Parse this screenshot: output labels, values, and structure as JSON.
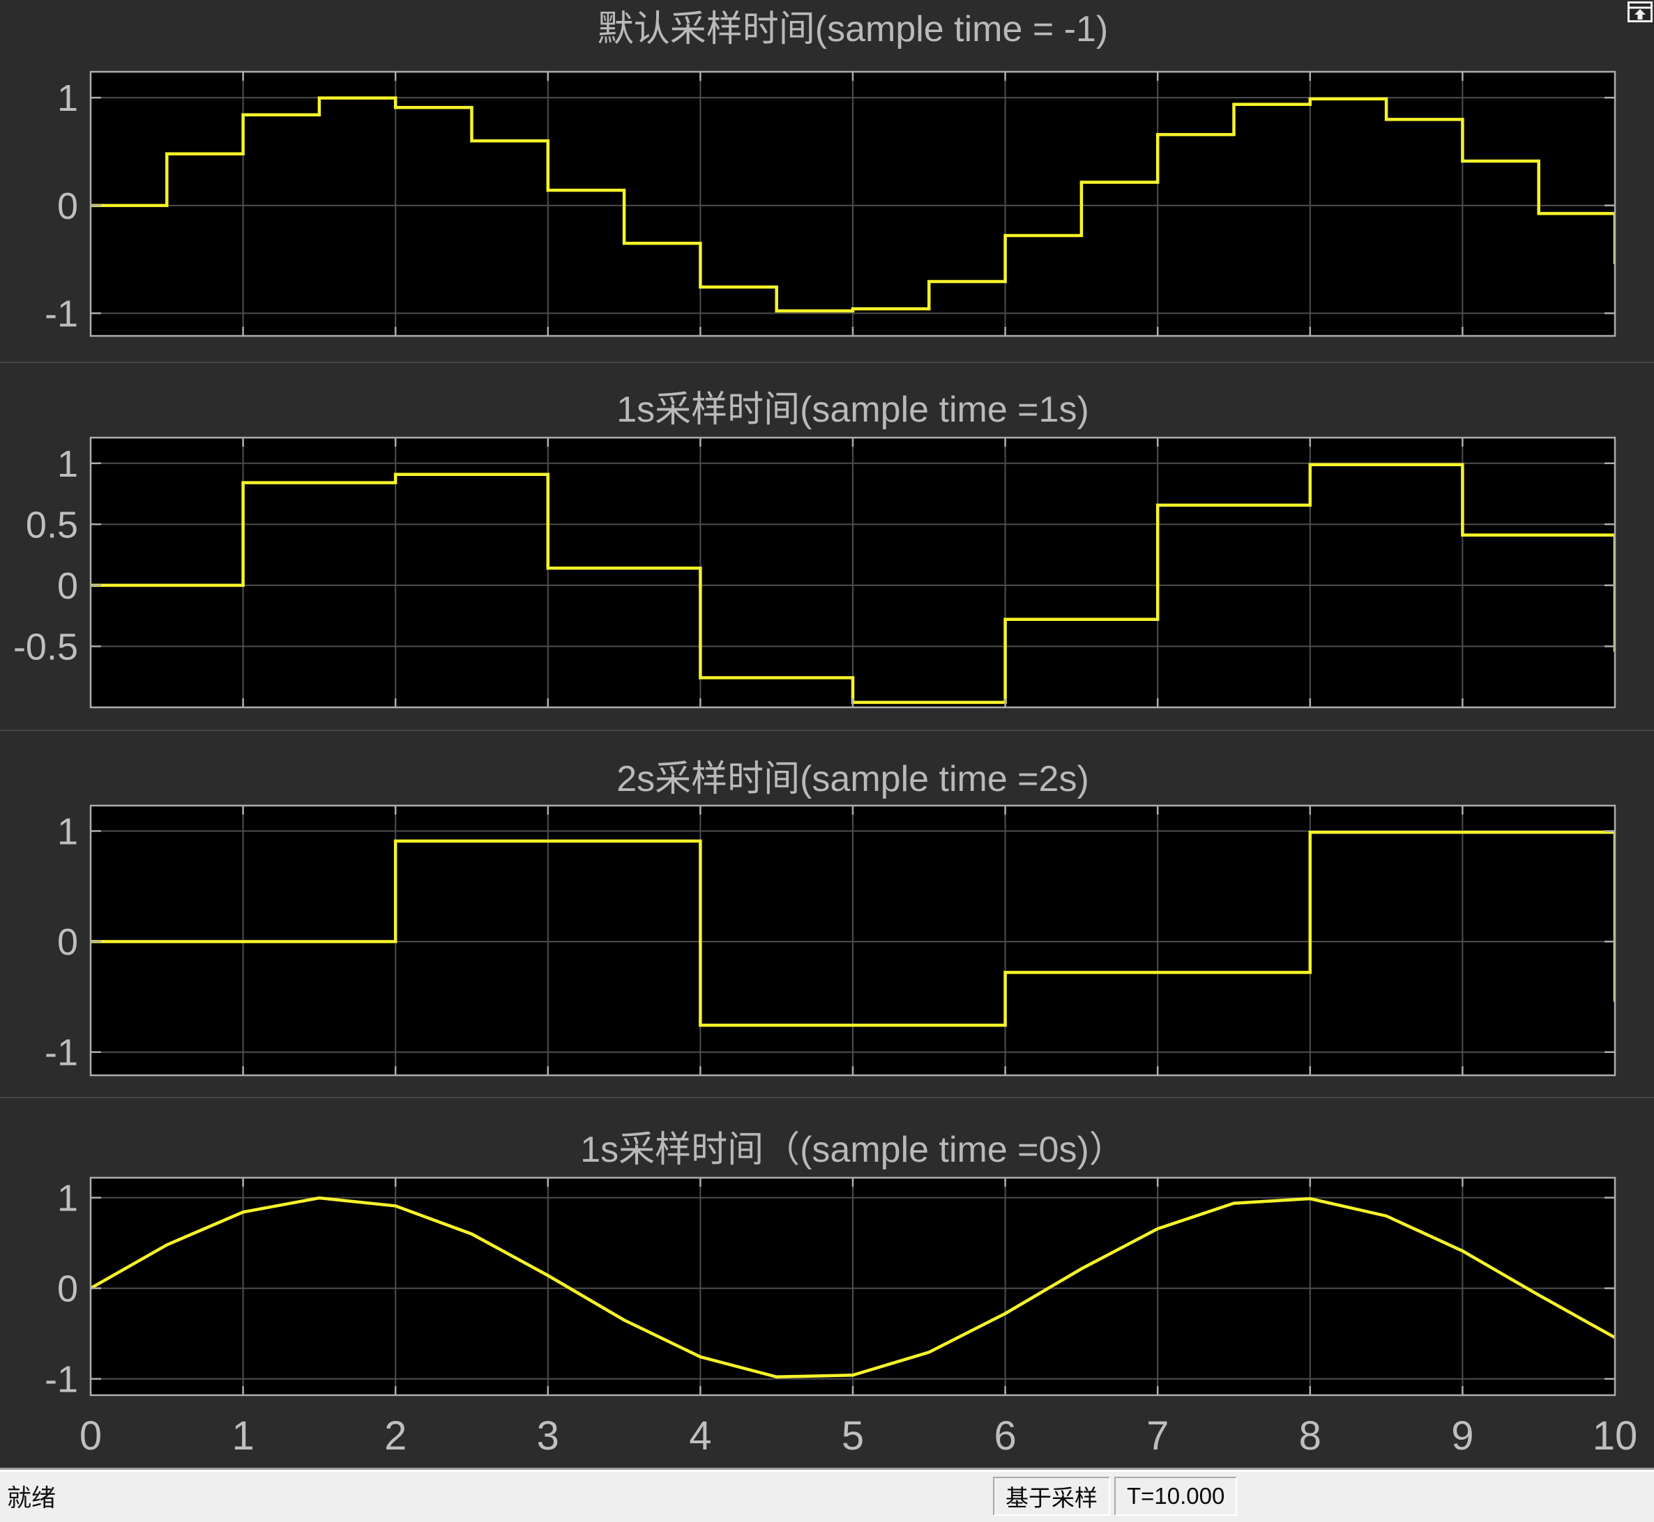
{
  "window": {
    "kind": "simulink-scope"
  },
  "icons": {
    "top_right": "restore-window-up-arrow-icon"
  },
  "colors": {
    "background": "#2c2c2c",
    "plot_bg": "#000000",
    "grid": "#4e4e4e",
    "axis_border": "#aeaeae",
    "tick_label": "#bfbfbf",
    "title": "#b9b9b9",
    "trace": "#f6f32a",
    "statusbar_bg": "#efefef",
    "statusbar_text": "#141414"
  },
  "status": {
    "ready_label": "就绪",
    "mode_label": "基于采样",
    "time_label": "T=10.000"
  },
  "chart_data": [
    {
      "type": "stairs",
      "title": "默认采样时间(sample time = -1)",
      "sample_time": 0.5,
      "x": [
        0,
        0.5,
        1,
        1.5,
        2,
        2.5,
        3,
        3.5,
        4,
        4.5,
        5,
        5.5,
        6,
        6.5,
        7,
        7.5,
        8,
        8.5,
        9,
        9.5
      ],
      "y": [
        0,
        0.479,
        0.841,
        0.997,
        0.909,
        0.599,
        0.141,
        -0.351,
        -0.757,
        -0.978,
        -0.959,
        -0.706,
        -0.279,
        0.215,
        0.657,
        0.938,
        0.989,
        0.798,
        0.412,
        -0.075
      ],
      "end_value": -0.544,
      "xlim": [
        0,
        10
      ],
      "ylim": [
        -1.21,
        1.24
      ],
      "xgrid_values": [
        1,
        2,
        3,
        4,
        5,
        6,
        7,
        8,
        9
      ],
      "ytick_values": [
        1,
        0,
        -1
      ],
      "ytick_labels": [
        "1",
        "0",
        "-1"
      ],
      "grid": true,
      "xlabel": "",
      "ylabel": ""
    },
    {
      "type": "stairs",
      "title": "1s采样时间(sample time =1s)",
      "sample_time": 1,
      "x": [
        0,
        1,
        2,
        3,
        4,
        5,
        6,
        7,
        8,
        9
      ],
      "y": [
        0,
        0.841,
        0.909,
        0.141,
        -0.757,
        -0.959,
        -0.279,
        0.657,
        0.989,
        0.412
      ],
      "end_value": -0.544,
      "xlim": [
        0,
        10
      ],
      "ylim": [
        -1.0,
        1.21
      ],
      "xgrid_values": [
        1,
        2,
        3,
        4,
        5,
        6,
        7,
        8,
        9
      ],
      "ytick_values": [
        1,
        0.5,
        0,
        -0.5
      ],
      "ytick_labels": [
        "1",
        "0.5",
        "0",
        "-0.5"
      ],
      "grid": true,
      "xlabel": "",
      "ylabel": ""
    },
    {
      "type": "stairs",
      "title": "2s采样时间(sample time =2s)",
      "sample_time": 2,
      "x": [
        0,
        2,
        4,
        6,
        8
      ],
      "y": [
        0,
        0.909,
        -0.757,
        -0.279,
        0.989
      ],
      "end_value": -0.544,
      "xlim": [
        0,
        10
      ],
      "ylim": [
        -1.21,
        1.23
      ],
      "xgrid_values": [
        1,
        2,
        3,
        4,
        5,
        6,
        7,
        8,
        9
      ],
      "ytick_values": [
        1,
        0,
        -1
      ],
      "ytick_labels": [
        "1",
        "0",
        "-1"
      ],
      "grid": true,
      "xlabel": "",
      "ylabel": ""
    },
    {
      "type": "line",
      "title": "1s采样时间（(sample time =0s)）",
      "sample_time": 0,
      "x": [
        0,
        0.5,
        1,
        1.5,
        2,
        2.5,
        3,
        3.5,
        4,
        4.5,
        5,
        5.5,
        6,
        6.5,
        7,
        7.5,
        8,
        8.5,
        9,
        9.5,
        10
      ],
      "y": [
        0,
        0.479,
        0.841,
        0.997,
        0.909,
        0.599,
        0.141,
        -0.351,
        -0.757,
        -0.978,
        -0.959,
        -0.706,
        -0.279,
        0.215,
        0.657,
        0.938,
        0.989,
        0.798,
        0.412,
        -0.075,
        -0.544
      ],
      "xlim": [
        0,
        10
      ],
      "ylim": [
        -1.18,
        1.22
      ],
      "xgrid_values": [
        1,
        2,
        3,
        4,
        5,
        6,
        7,
        8,
        9
      ],
      "ytick_values": [
        1,
        0,
        -1
      ],
      "ytick_labels": [
        "1",
        "0",
        "-1"
      ],
      "xtick_values": [
        0,
        1,
        2,
        3,
        4,
        5,
        6,
        7,
        8,
        9,
        10
      ],
      "xtick_labels": [
        "0",
        "1",
        "2",
        "3",
        "4",
        "5",
        "6",
        "7",
        "8",
        "9",
        "10"
      ],
      "grid": true,
      "xlabel": "",
      "ylabel": ""
    }
  ]
}
